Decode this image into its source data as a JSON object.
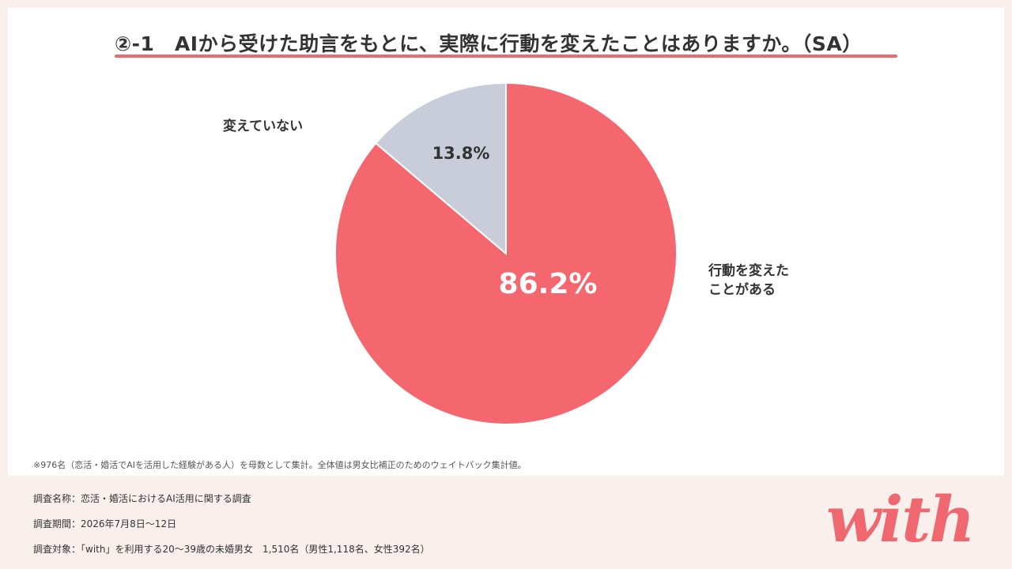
{
  "title": "②-1　AIから受けた助言をもとに、実際に行動を変えたことはありますか。（SA）",
  "chart_data": {
    "type": "pie",
    "slices": [
      {
        "label": "行動を変えたことがある",
        "label_lines": [
          "行動を変えた",
          "ことがある"
        ],
        "value": 86.2,
        "value_text": "86.2%",
        "color": "#f4676f"
      },
      {
        "label": "変えていない",
        "label_lines": [
          "変えていない"
        ],
        "value": 13.8,
        "value_text": "13.8%",
        "color": "#c9cdd9"
      }
    ]
  },
  "note": "※976名（恋活・婚活でAIを活用した経験がある人）を母数として集計。全体値は男女比補正のためのウェイトバック集計値。",
  "survey": {
    "name": "調査名称：恋活・婚活におけるAI活用に関する調査",
    "period": "調査期間：2026年7月8日〜12日",
    "target": "調査対象：「with」を利用する20〜39歳の未婚男女　1,510名（男性1,118名、女性392名）"
  },
  "logo_text": "with",
  "colors": {
    "accent": "#f0686f",
    "background": "#f9efec"
  }
}
